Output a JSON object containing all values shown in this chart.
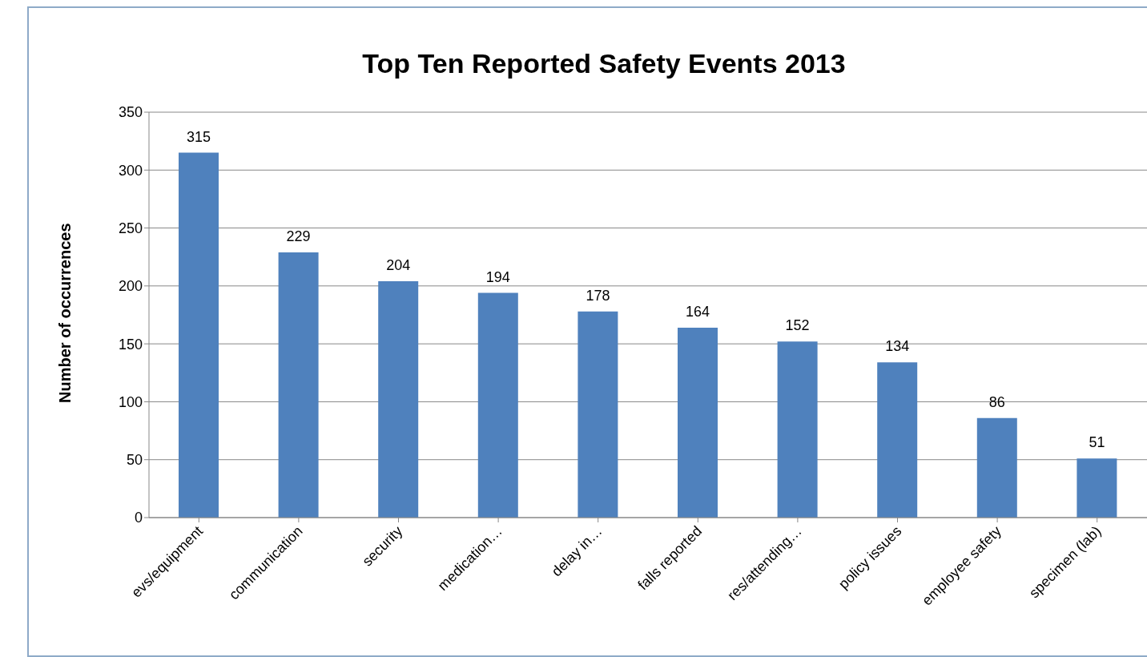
{
  "chart_data": {
    "type": "bar",
    "title": "Top Ten Reported Safety Events 2013",
    "ylabel": "Number of occurrences",
    "categories": [
      "evs/equipment",
      "communication",
      "security",
      "medication…",
      "delay in…",
      "falls reported",
      "res/attending…",
      "policy issues",
      "employee safety",
      "specimen (lab)"
    ],
    "values": [
      315,
      229,
      204,
      194,
      178,
      164,
      152,
      134,
      86,
      51
    ],
    "color": "#4f81bd",
    "ylim": [
      0,
      350
    ],
    "yticks": [
      0,
      50,
      100,
      150,
      200,
      250,
      300,
      350
    ],
    "grid": "y",
    "data_labels": true,
    "legend": false
  }
}
